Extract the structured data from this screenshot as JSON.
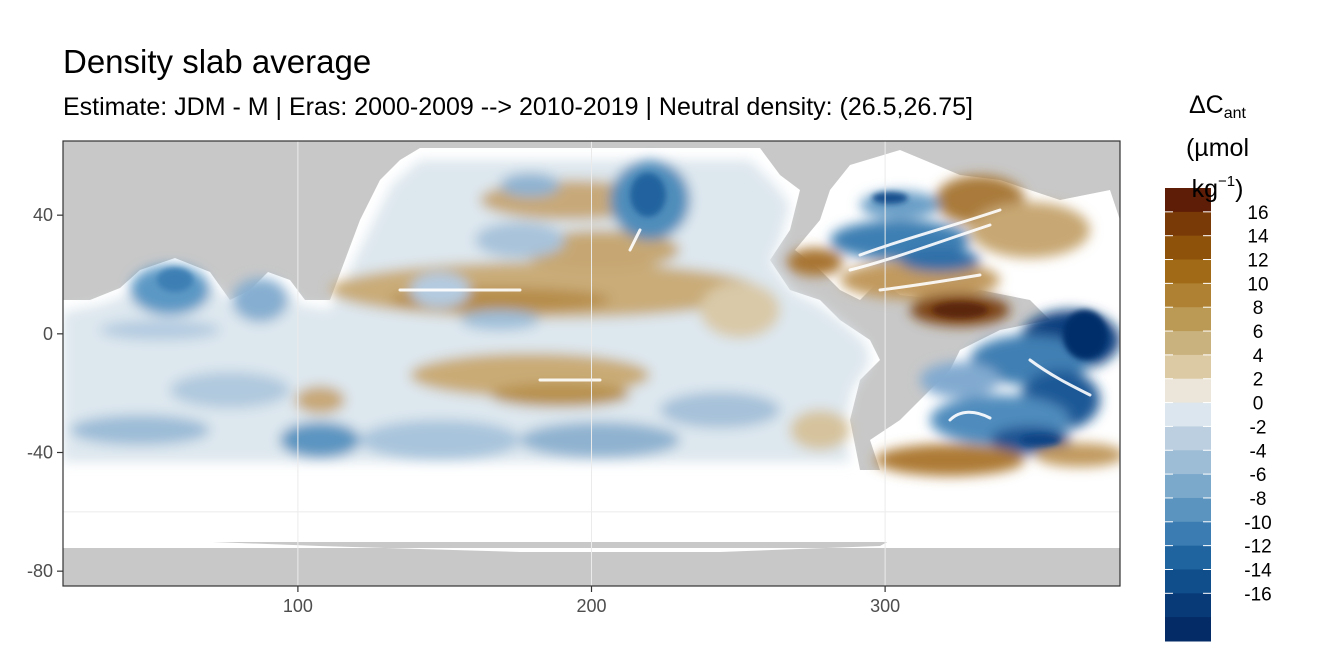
{
  "title": "Density slab average",
  "subtitle": "Estimate: JDM - M | Eras: 2000-2009 --> 2010-2019 | Neutral density: (26.5,26.75]",
  "x_axis": {
    "range": [
      20,
      380
    ],
    "ticks": [
      100,
      200,
      300
    ]
  },
  "y_axis": {
    "range": [
      -85,
      65
    ],
    "ticks": [
      40,
      0,
      -40,
      -80
    ]
  },
  "legend": {
    "symbol": "ΔC",
    "subscript": "ant",
    "unit_prefix": "(µmol kg",
    "unit_exponent": "−1",
    "unit_suffix": ")",
    "labels": [
      "16",
      "14",
      "12",
      "10",
      "8",
      "6",
      "4",
      "2",
      "0",
      "-2",
      "-4",
      "-6",
      "-8",
      "-10",
      "-12",
      "-14",
      "-16"
    ],
    "colors": [
      "#5e1d06",
      "#7a3a08",
      "#8f520b",
      "#a06a16",
      "#ae8232",
      "#bb9a56",
      "#c9b27d",
      "#dccaa5",
      "#ece6da",
      "#dce6ee",
      "#bccfe1",
      "#9dbdd6",
      "#7ba9cc",
      "#5a94bf",
      "#3b7db2",
      "#1f649f",
      "#104e8b",
      "#083a78",
      "#042b66"
    ]
  },
  "colors": {
    "land": "#c8c8c8",
    "no_data": "#ffffff",
    "grid": "#ebebeb",
    "frame": "#333333"
  }
}
